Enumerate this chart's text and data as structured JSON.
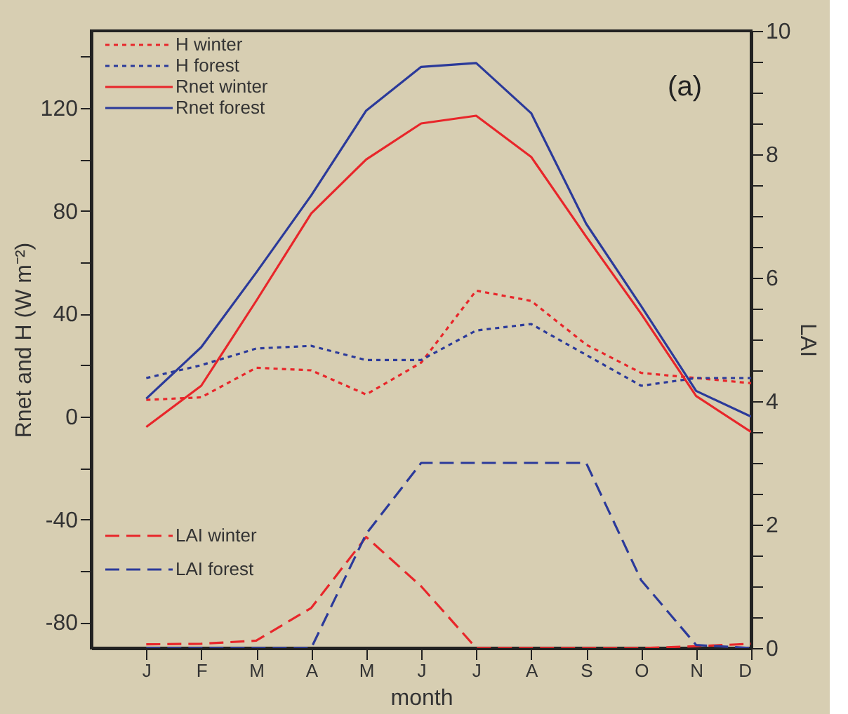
{
  "chart_data": {
    "type": "line",
    "xlabel": "month",
    "ylabel": "Rnet and H (W m⁻²)",
    "y2label": "LAI",
    "annotations": [
      "(a)"
    ],
    "categories": [
      "J",
      "F",
      "M",
      "A",
      "M",
      "J",
      "J",
      "A",
      "S",
      "O",
      "N",
      "D"
    ],
    "ylim": [
      -90,
      150
    ],
    "yticks": [
      {
        "value": -80,
        "label": "-80"
      },
      {
        "value": -60,
        "label": null
      },
      {
        "value": -40,
        "label": "-40"
      },
      {
        "value": -20,
        "label": null
      },
      0,
      {
        "value": 20,
        "label": null
      },
      40,
      {
        "value": 60,
        "label": null
      },
      80,
      {
        "value": 100,
        "label": null
      },
      120,
      {
        "value": 140,
        "label": null
      }
    ],
    "y2lim": [
      0,
      10
    ],
    "y2ticks": [
      0,
      {
        "value": 0.5,
        "label": null
      },
      {
        "value": 1,
        "label": null
      },
      {
        "value": 1.5,
        "label": null
      },
      2,
      {
        "value": 2.5,
        "label": null
      },
      {
        "value": 3,
        "label": null
      },
      {
        "value": 3.5,
        "label": null
      },
      4,
      {
        "value": 4.5,
        "label": null
      },
      {
        "value": 5,
        "label": null
      },
      {
        "value": 5.5,
        "label": null
      },
      6,
      {
        "value": 6.5,
        "label": null
      },
      {
        "value": 7,
        "label": null
      },
      {
        "value": 7.5,
        "label": null
      },
      8,
      {
        "value": 8.5,
        "label": null
      },
      {
        "value": 9,
        "label": null
      },
      {
        "value": 9.5,
        "label": null
      },
      10
    ],
    "grid": false,
    "legend": "top left",
    "marker": "none",
    "series": [
      {
        "name": "H winter",
        "color": "#e8262a",
        "line_style": "dotted",
        "values": [
          6.5,
          7.5,
          19,
          18,
          8.6,
          21,
          49,
          45,
          28,
          17,
          15,
          13
        ]
      },
      {
        "name": "H forest",
        "color": "#2b3a9a",
        "line_style": "dotted",
        "values": [
          15,
          20,
          26.5,
          27.5,
          22,
          22,
          33.5,
          36,
          24,
          12,
          15,
          15
        ]
      },
      {
        "name": "Rnet winter",
        "color": "#e8262a",
        "line_style": "solid",
        "values": [
          -4,
          12,
          45,
          79,
          100,
          114,
          117,
          101,
          70,
          40,
          8,
          -6
        ]
      },
      {
        "name": "Rnet forest",
        "color": "#2b3a9a",
        "line_style": "solid",
        "values": [
          7,
          27,
          56,
          86,
          119,
          136,
          137.5,
          118,
          75,
          43,
          10,
          0
        ]
      },
      {
        "name": "LAI winter",
        "color": "#e8262a",
        "line_style": "dashed",
        "axis": "y2",
        "values": [
          0.06,
          0.07,
          0.12,
          0.65,
          1.8,
          1.0,
          0,
          0,
          0,
          0,
          0.03,
          0.07
        ]
      },
      {
        "name": "LAI forest",
        "color": "#2b3a9a",
        "line_style": "dashed",
        "axis": "y2",
        "values": [
          0,
          0,
          0,
          0,
          1.85,
          3,
          3,
          3,
          3,
          1.1,
          0.05,
          0
        ]
      }
    ]
  }
}
